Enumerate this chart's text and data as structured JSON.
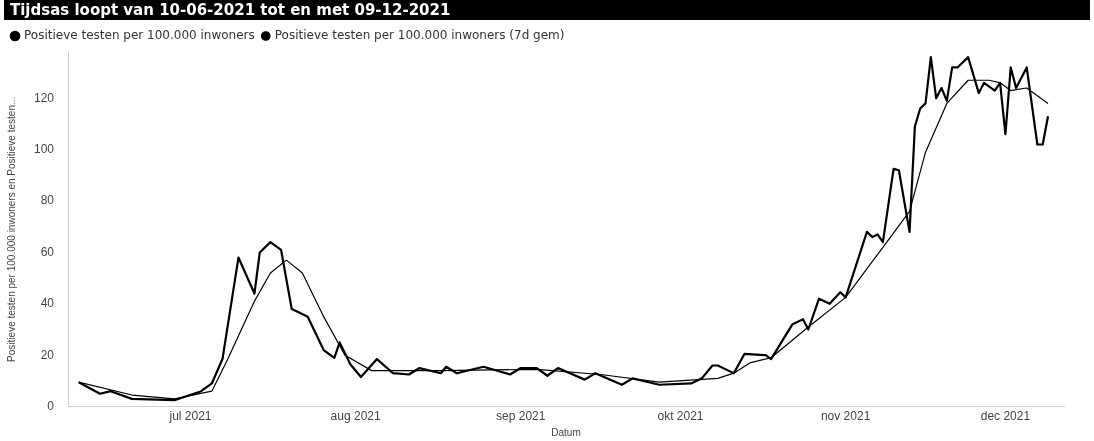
{
  "chart_data": {
    "type": "line",
    "title": "Tijdsas loopt van 10-06-2021 tot en met 09-12-2021",
    "xlabel": "Datum",
    "ylabel": "Positieve testen per 100.000 inwoners en Positieve testen...",
    "legend": "top left",
    "grid": false,
    "marker": "none",
    "line_style": "solid",
    "xticks": [
      {
        "value": "2021-07-01",
        "label": "jul 2021"
      },
      {
        "value": "2021-08-01",
        "label": "aug 2021"
      },
      {
        "value": "2021-09-01",
        "label": "sep 2021"
      },
      {
        "value": "2021-10-01",
        "label": "okt 2021"
      },
      {
        "value": "2021-11-01",
        "label": "nov 2021"
      },
      {
        "value": "2021-12-01",
        "label": "dec 2021"
      }
    ],
    "xlim": [
      "2021-06-08",
      "2021-12-12"
    ],
    "ylim": [
      0,
      138
    ],
    "yticks": [
      0,
      20,
      40,
      60,
      80,
      100,
      120
    ],
    "series": [
      {
        "name": "Positieve testen per 100.000 inwoners",
        "color": "#000000",
        "x": [
          "2021-06-10",
          "2021-06-14",
          "2021-06-16",
          "2021-06-20",
          "2021-06-28",
          "2021-07-03",
          "2021-07-05",
          "2021-07-07",
          "2021-07-10",
          "2021-07-13",
          "2021-07-14",
          "2021-07-16",
          "2021-07-18",
          "2021-07-20",
          "2021-07-21",
          "2021-07-23",
          "2021-07-26",
          "2021-07-28",
          "2021-07-29",
          "2021-07-31",
          "2021-08-02",
          "2021-08-05",
          "2021-08-08",
          "2021-08-11",
          "2021-08-13",
          "2021-08-17",
          "2021-08-18",
          "2021-08-20",
          "2021-08-25",
          "2021-08-30",
          "2021-09-01",
          "2021-09-04",
          "2021-09-06",
          "2021-09-08",
          "2021-09-13",
          "2021-09-15",
          "2021-09-20",
          "2021-09-22",
          "2021-09-27",
          "2021-10-03",
          "2021-10-05",
          "2021-10-07",
          "2021-10-08",
          "2021-10-10",
          "2021-10-11",
          "2021-10-13",
          "2021-10-17",
          "2021-10-18",
          "2021-10-22",
          "2021-10-24",
          "2021-10-25",
          "2021-10-27",
          "2021-10-29",
          "2021-10-31",
          "2021-11-01",
          "2021-11-05",
          "2021-11-06",
          "2021-11-07",
          "2021-11-08",
          "2021-11-10",
          "2021-11-11",
          "2021-11-13",
          "2021-11-14",
          "2021-11-15",
          "2021-11-16",
          "2021-11-17",
          "2021-11-18",
          "2021-11-19",
          "2021-11-20",
          "2021-11-21",
          "2021-11-22",
          "2021-11-24",
          "2021-11-26",
          "2021-11-27",
          "2021-11-29",
          "2021-11-30",
          "2021-12-01",
          "2021-12-02",
          "2021-12-03",
          "2021-12-05",
          "2021-12-07",
          "2021-12-08",
          "2021-12-09"
        ],
        "values": [
          9.5,
          5,
          6,
          3,
          2.5,
          6,
          9,
          18.5,
          58,
          44,
          60,
          64,
          61,
          38,
          37,
          35,
          22,
          19,
          25,
          16.5,
          11.5,
          18.5,
          13,
          12.5,
          15,
          13,
          15.5,
          13,
          15.5,
          12.5,
          15,
          15,
          12,
          15,
          10.5,
          13,
          8.5,
          11,
          8.5,
          9,
          11,
          16,
          16,
          14,
          13,
          20.5,
          20,
          18.5,
          32,
          34,
          30,
          42,
          40,
          44.5,
          42.5,
          68,
          66,
          67,
          64,
          92.5,
          92,
          68,
          109,
          116,
          118,
          136,
          120,
          124,
          119,
          132,
          132,
          136,
          122,
          126,
          123,
          126,
          106,
          132,
          124,
          132,
          102,
          102,
          113
        ]
      },
      {
        "name": "Positieve testen per 100.000 inwoners (7d gem)",
        "color": "#000000",
        "x": [
          "2021-06-10",
          "2021-06-20",
          "2021-06-28",
          "2021-07-05",
          "2021-07-08",
          "2021-07-13",
          "2021-07-16",
          "2021-07-19",
          "2021-07-22",
          "2021-07-26",
          "2021-07-30",
          "2021-08-04",
          "2021-08-09",
          "2021-08-17",
          "2021-09-04",
          "2021-09-16",
          "2021-09-27",
          "2021-10-08",
          "2021-10-11",
          "2021-10-14",
          "2021-10-18",
          "2021-10-25",
          "2021-11-01",
          "2021-11-08",
          "2021-11-13",
          "2021-11-16",
          "2021-11-20",
          "2021-11-24",
          "2021-11-28",
          "2021-11-30",
          "2021-12-02",
          "2021-12-05",
          "2021-12-09"
        ],
        "values": [
          9.5,
          4.5,
          3,
          6,
          18.5,
          41,
          52,
          57,
          52,
          35,
          20,
          14,
          14,
          14,
          14.5,
          12.5,
          9.5,
          11,
          13,
          17,
          19,
          31,
          42.5,
          62,
          76,
          99,
          118,
          127,
          127,
          126,
          123,
          124,
          118
        ]
      }
    ]
  }
}
